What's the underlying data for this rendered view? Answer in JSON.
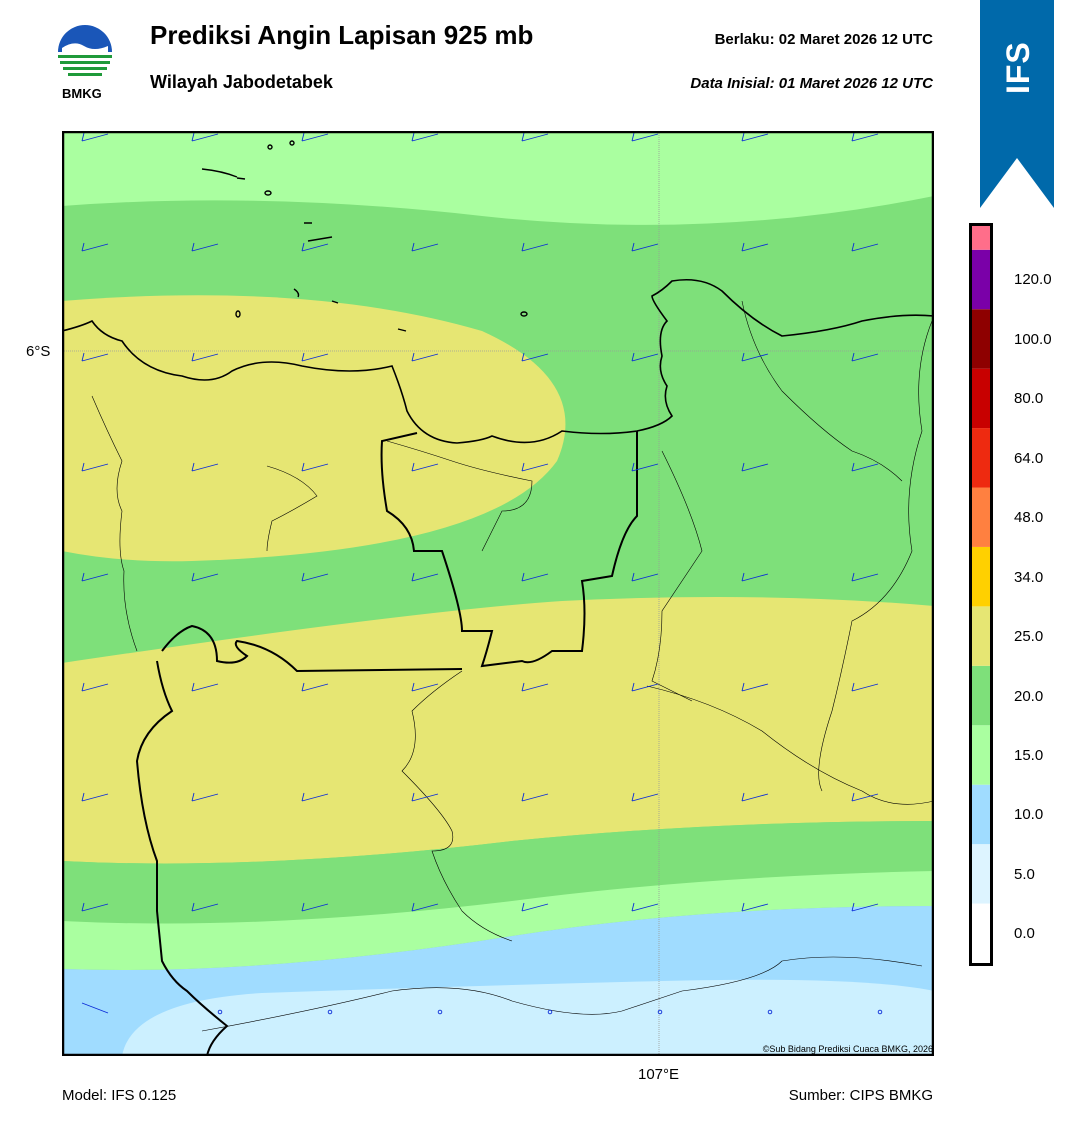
{
  "header": {
    "title": "Prediksi Angin Lapisan 925 mb",
    "subtitle": "Wilayah Jabodetabek",
    "valid_time": "Berlaku:  02 Maret 2026 12 UTC",
    "init_time": "Data Inisial:  01 Maret 2026 12 UTC"
  },
  "logo": {
    "text": "BMKG",
    "icon": "bmkg-logo-icon"
  },
  "badge": {
    "text": "IFS",
    "color": "#0069aa"
  },
  "axes": {
    "lat_label": "6°S",
    "lon_label": "107°E"
  },
  "footer": {
    "model": "Model: IFS 0.125",
    "source": "Sumber: CIPS BMKG",
    "copyright": "©Sub Bidang Prediksi Cuaca BMKG, 2026"
  },
  "colorbar": {
    "labels": [
      "0.0",
      "5.0",
      "10.0",
      "15.0",
      "20.0",
      "25.0",
      "34.0",
      "48.0",
      "64.0",
      "80.0",
      "100.0",
      "120.0"
    ],
    "colors": [
      "#ffffff",
      "#ddf4ff",
      "#a0dcff",
      "#aaffa0",
      "#7ee07a",
      "#e6e673",
      "#ffd000",
      "#ff8040",
      "#ee2a10",
      "#c80000",
      "#8e0000",
      "#7a00a8",
      "#ff6e8a"
    ]
  },
  "map_colors": {
    "light_green": "#aaffa0",
    "green": "#7ee07a",
    "yellow": "#e6e673",
    "light_blue": "#a0dcff",
    "pale_blue": "#ccf0ff",
    "barb": "#0a2bd8"
  }
}
